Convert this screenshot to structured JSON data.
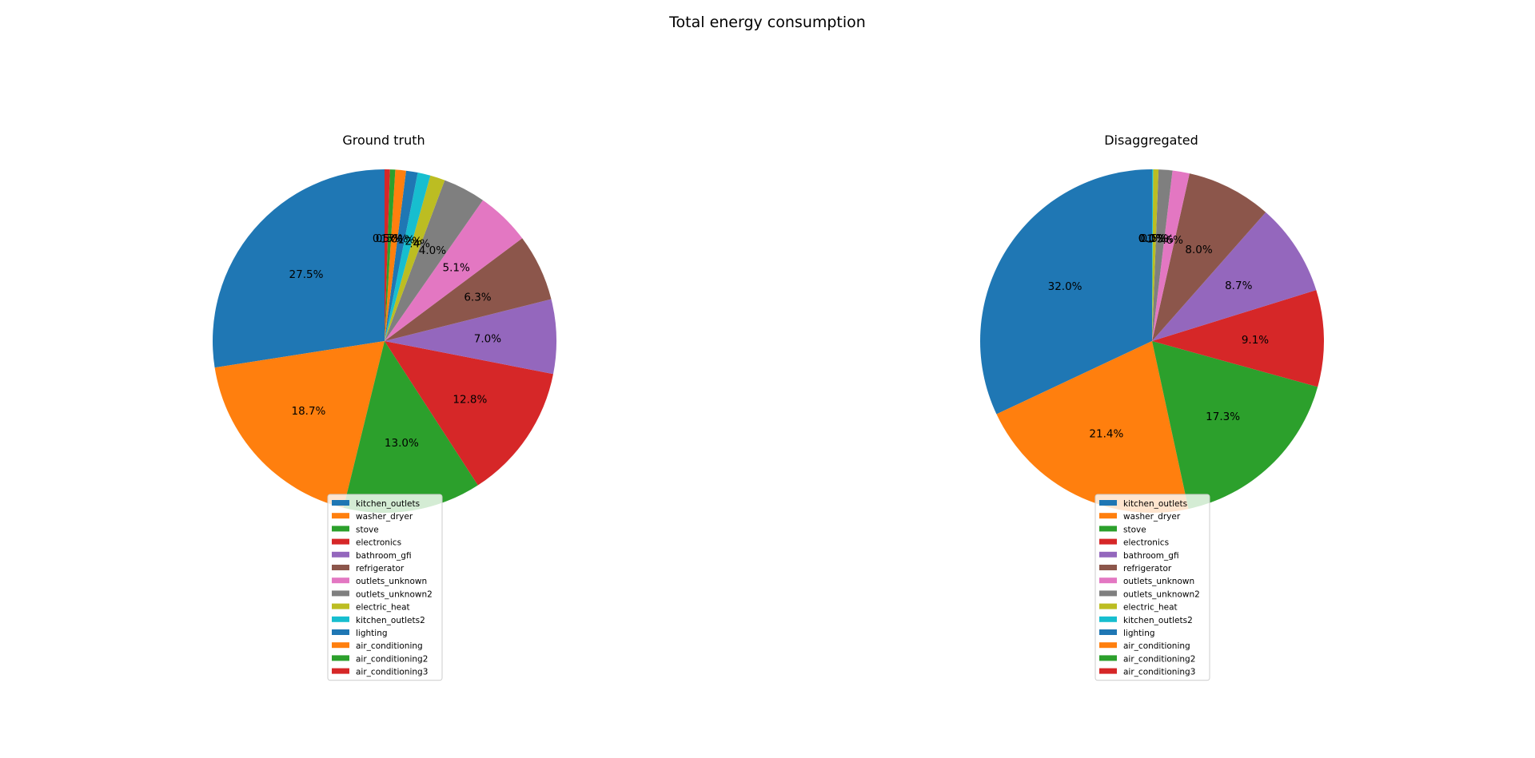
{
  "figure": {
    "title": "Total energy consumption"
  },
  "colors": [
    "#1f77b4",
    "#ff7f0e",
    "#2ca02c",
    "#d62728",
    "#9467bd",
    "#8c564b",
    "#e377c2",
    "#7f7f7f",
    "#bcbd22",
    "#17becf",
    "#1f77b4",
    "#ff7f0e",
    "#2ca02c",
    "#d62728"
  ],
  "chart_data": [
    {
      "type": "pie",
      "title": "Ground truth",
      "labels": [
        "kitchen_outlets",
        "washer_dryer",
        "stove",
        "electronics",
        "bathroom_gfi",
        "refrigerator",
        "outlets_unknown",
        "outlets_unknown2",
        "electric_heat",
        "kitchen_outlets2",
        "lighting",
        "air_conditioning",
        "air_conditioning2",
        "air_conditioning3"
      ],
      "values": [
        27.5,
        18.7,
        13.0,
        12.8,
        7.0,
        6.3,
        5.1,
        4.0,
        1.4,
        1.2,
        1.1,
        1.0,
        0.5,
        0.5
      ],
      "autopct": [
        "27.5%",
        "18.7%",
        "13.0%",
        "12.8%",
        "7.0%",
        "6.3%",
        "5.1%",
        "4.0%",
        "1.4%",
        "1.2%",
        "1.1%",
        "1.0%",
        "0.5%",
        "0.5%"
      ],
      "startangle": 90,
      "direction": "counterclockwise",
      "legend": "lower center"
    },
    {
      "type": "pie",
      "title": "Disaggregated",
      "labels": [
        "kitchen_outlets",
        "washer_dryer",
        "stove",
        "electronics",
        "bathroom_gfi",
        "refrigerator",
        "outlets_unknown",
        "outlets_unknown2",
        "electric_heat",
        "kitchen_outlets2",
        "lighting",
        "air_conditioning",
        "air_conditioning2",
        "air_conditioning3"
      ],
      "values": [
        32.0,
        21.4,
        17.3,
        9.1,
        8.7,
        8.0,
        1.6,
        1.3,
        0.5,
        0.1,
        0.0,
        0.0,
        0.0,
        0.0
      ],
      "autopct": [
        "32.0%",
        "21.4%",
        "17.3%",
        "9.1%",
        "8.7%",
        "8.0%",
        "1.6%",
        "1.3%",
        "0.5%",
        "0.1%",
        "0.0%",
        "0.0%",
        "0.0%",
        "0.0%"
      ],
      "startangle": 90,
      "direction": "counterclockwise",
      "legend": "lower center"
    }
  ]
}
